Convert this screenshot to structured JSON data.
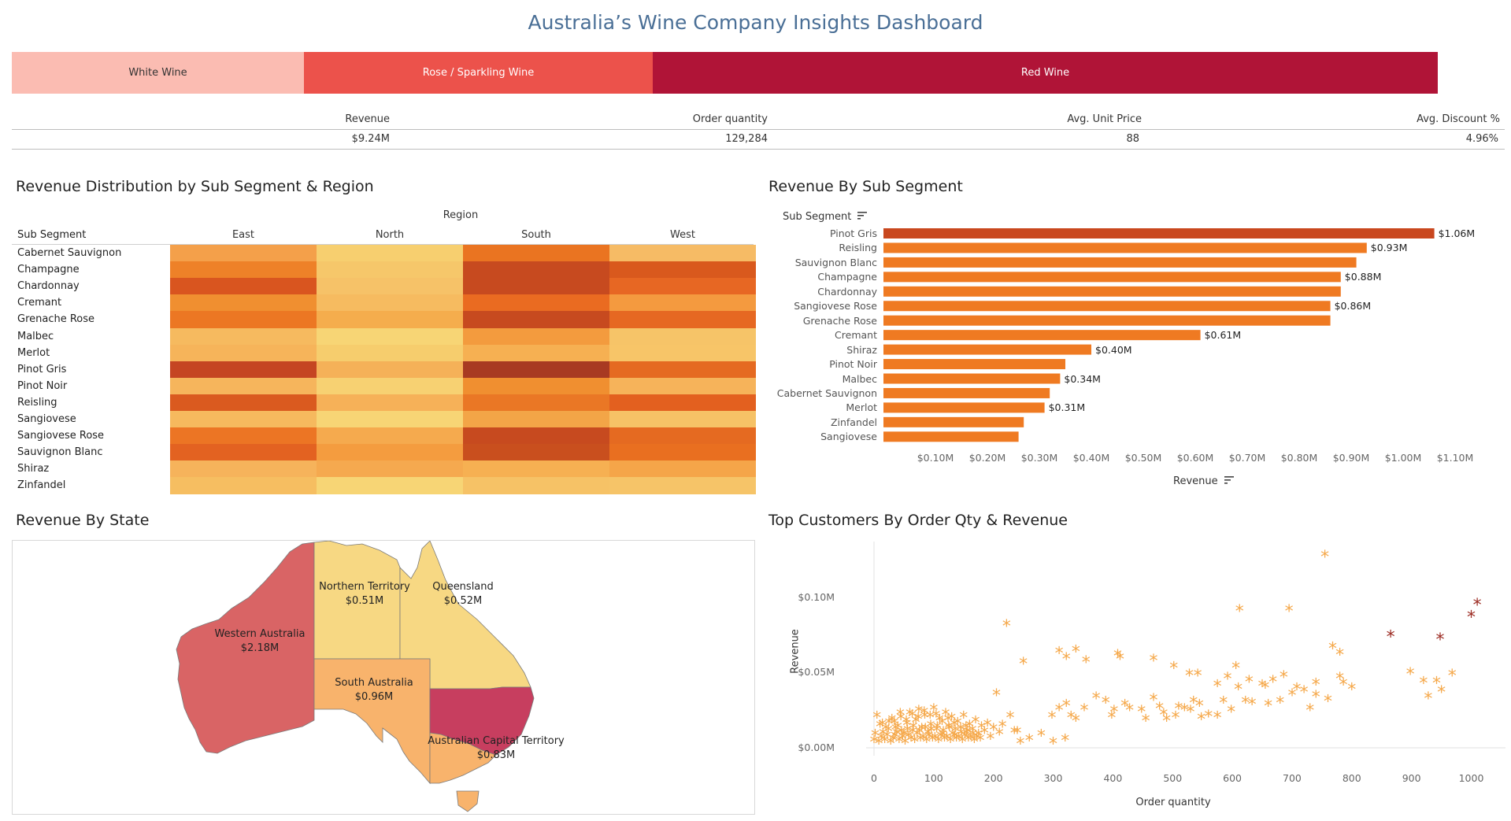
{
  "title": "Australia’s Wine Company Insights Dashboard",
  "segments": [
    {
      "label": "White Wine",
      "color": "#fbbcb2",
      "text_color": "#333333",
      "share": 0.2046
    },
    {
      "label": "Rose / Sparkling Wine",
      "color": "#ec524b",
      "text_color": "#ffffff",
      "share": 0.2446
    },
    {
      "label": "Red Wine",
      "color": "#b01437",
      "text_color": "#ffffff",
      "share": 0.5508
    }
  ],
  "kpis": {
    "revenue_label": "Revenue",
    "revenue_value": "$9.24M",
    "qty_label": "Order quantity",
    "qty_value": "129,284",
    "price_label": "Avg. Unit Price",
    "price_value": "88",
    "discount_label": "Avg. Discount %",
    "discount_value": "4.96%"
  },
  "heatmap": {
    "title": "Revenue Distribution by Sub Segment & Region",
    "region_header": "Region",
    "row_header": "Sub Segment",
    "regions": [
      "East",
      "North",
      "South",
      "West"
    ],
    "rows": [
      "Cabernet Sauvignon",
      "Champagne",
      "Chardonnay",
      "Cremant",
      "Grenache Rose",
      "Malbec",
      "Merlot",
      "Pinot Gris",
      "Pinot Noir",
      "Reisling",
      "Sangiovese",
      "Sangiovese Rose",
      "Sauvignon Blanc",
      "Shiraz",
      "Zinfandel"
    ],
    "colors": [
      [
        "#f4a04a",
        "#f7cf6f",
        "#ea7421",
        "#f6bb65"
      ],
      [
        "#ee8128",
        "#f6c76a",
        "#c74a1f",
        "#d9591d"
      ],
      [
        "#d9551f",
        "#f6c268",
        "#c74a1f",
        "#e76723"
      ],
      [
        "#f08f30",
        "#f6bb60",
        "#ea6b21",
        "#f49a3f"
      ],
      [
        "#ec7723",
        "#f5ad4d",
        "#c74a1f",
        "#e66822"
      ],
      [
        "#f6ba5f",
        "#f7d575",
        "#f39b3e",
        "#f6c468"
      ],
      [
        "#f6b45a",
        "#f6cd6d",
        "#f6b052",
        "#f7c568"
      ],
      [
        "#c54522",
        "#f5b158",
        "#a83a22",
        "#e56a21"
      ],
      [
        "#f6b55c",
        "#f7d172",
        "#f08f30",
        "#f6b35a"
      ],
      [
        "#da5a1f",
        "#f6b158",
        "#ea7725",
        "#e3601f"
      ],
      [
        "#f6b95e",
        "#f7d575",
        "#f3a547",
        "#f6c266"
      ],
      [
        "#ec7524",
        "#f5aa4e",
        "#c74a1f",
        "#e56a21"
      ],
      [
        "#e36221",
        "#f49c3f",
        "#c94f1e",
        "#e96f20"
      ],
      [
        "#f6b35b",
        "#f5a94f",
        "#f6b052",
        "#f5a549"
      ],
      [
        "#f6be61",
        "#f7d575",
        "#f6c266",
        "#f6c468"
      ]
    ]
  },
  "barchart": {
    "title": "Revenue By Sub Segment",
    "y_header": "Sub Segment",
    "x_header": "Revenue"
  },
  "map": {
    "title": "Revenue By State",
    "states": [
      {
        "name": "Western Australia",
        "value": "$2.18M",
        "color": "#d96465"
      },
      {
        "name": "Northern Territory",
        "value": "$0.51M",
        "color": "#f7d883"
      },
      {
        "name": "Queensland",
        "value": "$0.52M",
        "color": "#f7d883"
      },
      {
        "name": "South Australia",
        "value": "$0.96M",
        "color": "#f8b36c"
      },
      {
        "name": "Australian Capital Territory",
        "value": "$0.83M",
        "color": "#c73e5f"
      },
      {
        "name": "Victoria",
        "value": "",
        "color": "#f8b36c"
      },
      {
        "name": "Tasmania",
        "value": "",
        "color": "#f8b36c"
      }
    ]
  },
  "scatter": {
    "title": "Top Customers By Order Qty & Revenue",
    "point_color": "#f5a84a",
    "top_color": "#9c2b22",
    "marker": "*"
  },
  "chart_data": [
    {
      "type": "bar",
      "orientation": "horizontal",
      "title": "Revenue By Sub Segment",
      "ylabel": "Sub Segment",
      "xlabel": "Revenue",
      "categories": [
        "Pinot Gris",
        "Reisling",
        "Sauvignon Blanc",
        "Champagne",
        "Chardonnay",
        "Sangiovese Rose",
        "Grenache Rose",
        "Cremant",
        "Shiraz",
        "Pinot Noir",
        "Malbec",
        "Cabernet Sauvignon",
        "Merlot",
        "Zinfandel",
        "Sangiovese"
      ],
      "values": [
        1.06,
        0.93,
        0.91,
        0.88,
        0.88,
        0.86,
        0.86,
        0.61,
        0.4,
        0.35,
        0.34,
        0.32,
        0.31,
        0.27,
        0.26
      ],
      "data_labels": [
        "$1.06M",
        "$0.93M",
        "",
        "$0.88M",
        "",
        "$0.86M",
        "",
        "$0.61M",
        "$0.40M",
        "",
        "$0.34M",
        "",
        "$0.31M",
        "",
        ""
      ],
      "xlim": [
        0,
        1.2
      ],
      "xticks": [
        0.1,
        0.2,
        0.3,
        0.4,
        0.5,
        0.6,
        0.7,
        0.8,
        0.9,
        1.0,
        1.1
      ],
      "xtick_labels": [
        "$0.10M",
        "$0.20M",
        "$0.30M",
        "$0.40M",
        "$0.50M",
        "$0.60M",
        "$0.70M",
        "$0.80M",
        "$0.90M",
        "$1.00M",
        "$1.10M"
      ],
      "colors": [
        "#c9471e",
        "#ef7a22",
        "#ef7a22",
        "#ef7a22",
        "#ef7a22",
        "#ef7a22",
        "#ef7a22",
        "#ef7a22",
        "#ef7a22",
        "#ef7a22",
        "#ef7a22",
        "#ef7a22",
        "#ef7a22",
        "#ef7a22",
        "#ef7a22"
      ]
    },
    {
      "type": "scatter",
      "title": "Top Customers By Order Qty & Revenue",
      "xlabel": "Order quantity",
      "ylabel": "Revenue",
      "xlim": [
        -20,
        1040
      ],
      "ylim": [
        -0.003,
        0.133
      ],
      "xticks": [
        0,
        100,
        200,
        300,
        400,
        500,
        600,
        700,
        800,
        900,
        1000
      ],
      "yticks": [
        0,
        0.05,
        0.1
      ],
      "ytick_labels": [
        "$0.00M",
        "$0.05M",
        "$0.10M"
      ],
      "points": [
        [
          755,
          0.127
        ],
        [
          222,
          0.081
        ],
        [
          612,
          0.091
        ],
        [
          695,
          0.091
        ],
        [
          768,
          0.066
        ],
        [
          780,
          0.062
        ],
        [
          250,
          0.056
        ],
        [
          310,
          0.063
        ],
        [
          338,
          0.064
        ],
        [
          322,
          0.059
        ],
        [
          355,
          0.057
        ],
        [
          408,
          0.061
        ],
        [
          412,
          0.059
        ],
        [
          468,
          0.058
        ],
        [
          502,
          0.053
        ],
        [
          528,
          0.048
        ],
        [
          542,
          0.048
        ],
        [
          575,
          0.041
        ],
        [
          592,
          0.046
        ],
        [
          606,
          0.053
        ],
        [
          610,
          0.039
        ],
        [
          628,
          0.044
        ],
        [
          650,
          0.041
        ],
        [
          668,
          0.044
        ],
        [
          686,
          0.047
        ],
        [
          708,
          0.039
        ],
        [
          740,
          0.042
        ],
        [
          780,
          0.046
        ],
        [
          786,
          0.042
        ],
        [
          800,
          0.039
        ],
        [
          740,
          0.034
        ],
        [
          898,
          0.049
        ],
        [
          920,
          0.043
        ],
        [
          942,
          0.043
        ],
        [
          968,
          0.048
        ],
        [
          950,
          0.037
        ],
        [
          928,
          0.033
        ],
        [
          205,
          0.035
        ],
        [
          228,
          0.02
        ],
        [
          298,
          0.02
        ],
        [
          310,
          0.025
        ],
        [
          322,
          0.028
        ],
        [
          330,
          0.02
        ],
        [
          338,
          0.018
        ],
        [
          352,
          0.025
        ],
        [
          372,
          0.033
        ],
        [
          388,
          0.03
        ],
        [
          398,
          0.02
        ],
        [
          402,
          0.024
        ],
        [
          420,
          0.028
        ],
        [
          428,
          0.025
        ],
        [
          448,
          0.024
        ],
        [
          455,
          0.018
        ],
        [
          468,
          0.032
        ],
        [
          478,
          0.026
        ],
        [
          485,
          0.022
        ],
        [
          490,
          0.018
        ],
        [
          505,
          0.02
        ],
        [
          510,
          0.026
        ],
        [
          520,
          0.025
        ],
        [
          530,
          0.024
        ],
        [
          535,
          0.03
        ],
        [
          545,
          0.028
        ],
        [
          548,
          0.019
        ],
        [
          560,
          0.021
        ],
        [
          575,
          0.02
        ],
        [
          585,
          0.03
        ],
        [
          598,
          0.024
        ],
        [
          622,
          0.03
        ],
        [
          633,
          0.029
        ],
        [
          655,
          0.04
        ],
        [
          660,
          0.028
        ],
        [
          680,
          0.03
        ],
        [
          700,
          0.035
        ],
        [
          720,
          0.037
        ],
        [
          730,
          0.025
        ],
        [
          760,
          0.031
        ],
        [
          240,
          0.01
        ],
        [
          260,
          0.005
        ],
        [
          280,
          0.008
        ],
        [
          300,
          0.003
        ],
        [
          320,
          0.005
        ],
        [
          245,
          0.003
        ],
        [
          5,
          0.02
        ],
        [
          10,
          0.014
        ],
        [
          15,
          0.009
        ],
        [
          20,
          0.012
        ],
        [
          25,
          0.016
        ],
        [
          30,
          0.018
        ],
        [
          35,
          0.007
        ],
        [
          40,
          0.013
        ],
        [
          45,
          0.019
        ],
        [
          50,
          0.008
        ],
        [
          55,
          0.015
        ],
        [
          60,
          0.022
        ],
        [
          65,
          0.01
        ],
        [
          70,
          0.017
        ],
        [
          75,
          0.024
        ],
        [
          80,
          0.012
        ],
        [
          85,
          0.02
        ],
        [
          90,
          0.009
        ],
        [
          95,
          0.014
        ],
        [
          100,
          0.025
        ],
        [
          105,
          0.011
        ],
        [
          110,
          0.018
        ],
        [
          115,
          0.008
        ],
        [
          120,
          0.022
        ],
        [
          125,
          0.013
        ],
        [
          130,
          0.019
        ],
        [
          135,
          0.007
        ],
        [
          140,
          0.016
        ],
        [
          145,
          0.012
        ],
        [
          150,
          0.02
        ],
        [
          155,
          0.009
        ],
        [
          160,
          0.014
        ],
        [
          165,
          0.011
        ],
        [
          170,
          0.017
        ],
        [
          175,
          0.008
        ],
        [
          180,
          0.013
        ],
        [
          185,
          0.01
        ],
        [
          190,
          0.015
        ],
        [
          195,
          0.006
        ],
        [
          200,
          0.012
        ],
        [
          210,
          0.009
        ],
        [
          215,
          0.014
        ],
        [
          235,
          0.01
        ],
        [
          0,
          0.004
        ],
        [
          2,
          0.008
        ],
        [
          8,
          0.003
        ],
        [
          12,
          0.006
        ],
        [
          18,
          0.004
        ],
        [
          22,
          0.007
        ],
        [
          28,
          0.003
        ],
        [
          32,
          0.005
        ],
        [
          38,
          0.009
        ],
        [
          42,
          0.004
        ],
        [
          48,
          0.006
        ],
        [
          52,
          0.003
        ],
        [
          58,
          0.007
        ],
        [
          62,
          0.005
        ],
        [
          68,
          0.004
        ],
        [
          72,
          0.008
        ],
        [
          78,
          0.005
        ],
        [
          82,
          0.006
        ],
        [
          88,
          0.004
        ],
        [
          92,
          0.007
        ],
        [
          98,
          0.005
        ],
        [
          102,
          0.006
        ],
        [
          108,
          0.004
        ],
        [
          112,
          0.007
        ],
        [
          118,
          0.005
        ],
        [
          122,
          0.006
        ],
        [
          128,
          0.004
        ],
        [
          132,
          0.008
        ],
        [
          138,
          0.005
        ],
        [
          142,
          0.006
        ],
        [
          148,
          0.004
        ],
        [
          152,
          0.007
        ],
        [
          158,
          0.005
        ],
        [
          162,
          0.006
        ],
        [
          168,
          0.004
        ],
        [
          172,
          0.006
        ],
        [
          178,
          0.005
        ],
        [
          24,
          0.011
        ],
        [
          36,
          0.012
        ],
        [
          46,
          0.01
        ],
        [
          56,
          0.011
        ],
        [
          66,
          0.013
        ],
        [
          76,
          0.01
        ],
        [
          86,
          0.012
        ],
        [
          96,
          0.011
        ],
        [
          106,
          0.013
        ],
        [
          116,
          0.01
        ],
        [
          126,
          0.012
        ],
        [
          136,
          0.011
        ],
        [
          146,
          0.009
        ],
        [
          156,
          0.01
        ],
        [
          166,
          0.008
        ],
        [
          14,
          0.015
        ],
        [
          34,
          0.016
        ],
        [
          54,
          0.017
        ],
        [
          74,
          0.019
        ],
        [
          94,
          0.02
        ],
        [
          114,
          0.016
        ],
        [
          134,
          0.015
        ],
        [
          154,
          0.013
        ],
        [
          44,
          0.022
        ],
        [
          64,
          0.021
        ],
        [
          84,
          0.023
        ],
        [
          104,
          0.021
        ],
        [
          124,
          0.018
        ]
      ],
      "highlight_points": [
        [
          1010,
          0.095
        ],
        [
          1000,
          0.087
        ],
        [
          865,
          0.074
        ],
        [
          948,
          0.072
        ]
      ]
    },
    {
      "type": "heatmap",
      "title": "Revenue Distribution by Sub Segment & Region",
      "x_categories": [
        "East",
        "North",
        "South",
        "West"
      ],
      "y_categories": [
        "Cabernet Sauvignon",
        "Champagne",
        "Chardonnay",
        "Cremant",
        "Grenache Rose",
        "Malbec",
        "Merlot",
        "Pinot Gris",
        "Pinot Noir",
        "Reisling",
        "Sangiovese",
        "Sangiovese Rose",
        "Sauvignon Blanc",
        "Shiraz",
        "Zinfandel"
      ]
    }
  ]
}
